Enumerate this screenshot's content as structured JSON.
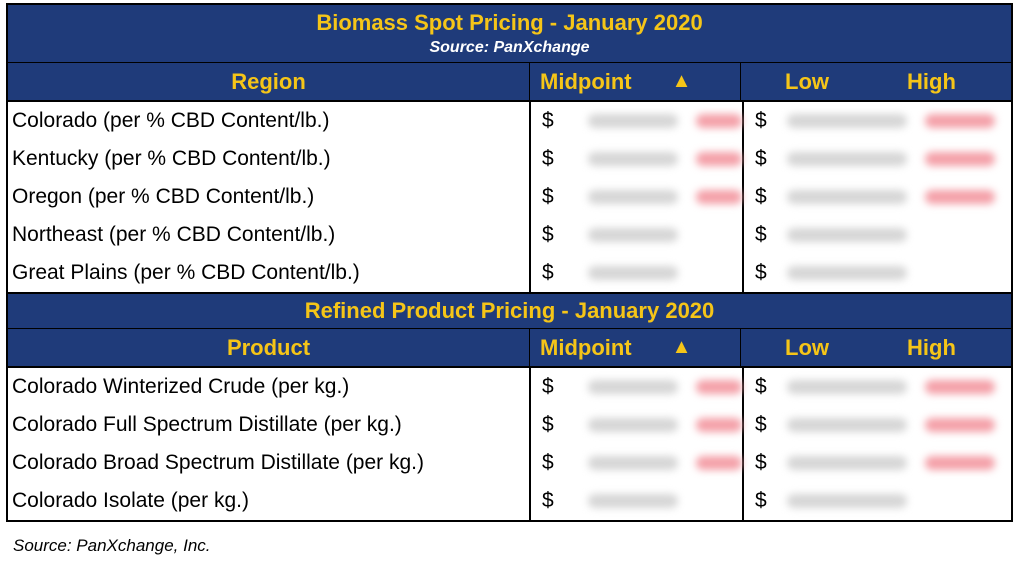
{
  "biomass": {
    "title": "Biomass Spot Pricing - January 2020",
    "subtitle": "Source: PanXchange",
    "headers": {
      "name": "Region",
      "midpoint": "Midpoint",
      "arrow": "▲",
      "low": "Low",
      "high": "High"
    },
    "rows": [
      {
        "label": "Colorado (per % CBD Content/lb.)",
        "currency": "$",
        "change_highlight": true
      },
      {
        "label": "Kentucky (per % CBD Content/lb.)",
        "currency": "$",
        "change_highlight": true
      },
      {
        "label": "Oregon  (per % CBD Content/lb.)",
        "currency": "$",
        "change_highlight": true
      },
      {
        "label": "Northeast (per % CBD Content/lb.)",
        "currency": "$",
        "change_highlight": false
      },
      {
        "label": "Great Plains (per % CBD Content/lb.)",
        "currency": "$",
        "change_highlight": false
      }
    ]
  },
  "refined": {
    "title": "Refined Product Pricing - January 2020",
    "headers": {
      "name": "Product",
      "midpoint": "Midpoint",
      "arrow": "▲",
      "low": "Low",
      "high": "High"
    },
    "rows": [
      {
        "label": "Colorado Winterized Crude (per kg.)",
        "currency": "$",
        "change_highlight": true
      },
      {
        "label": "Colorado Full Spectrum Distillate (per kg.)",
        "currency": "$",
        "change_highlight": true
      },
      {
        "label": "Colorado Broad Spectrum Distillate (per kg.)",
        "currency": "$",
        "change_highlight": true
      },
      {
        "label": "Colorado Isolate (per kg.)",
        "currency": "$",
        "change_highlight": false
      }
    ]
  },
  "footer": "Source: PanXchange, Inc.",
  "colors": {
    "header_bg": "#1f3b7a",
    "header_text": "#f5c518",
    "subtitle_text": "#ffffff",
    "highlight": "#f4a0a8"
  }
}
